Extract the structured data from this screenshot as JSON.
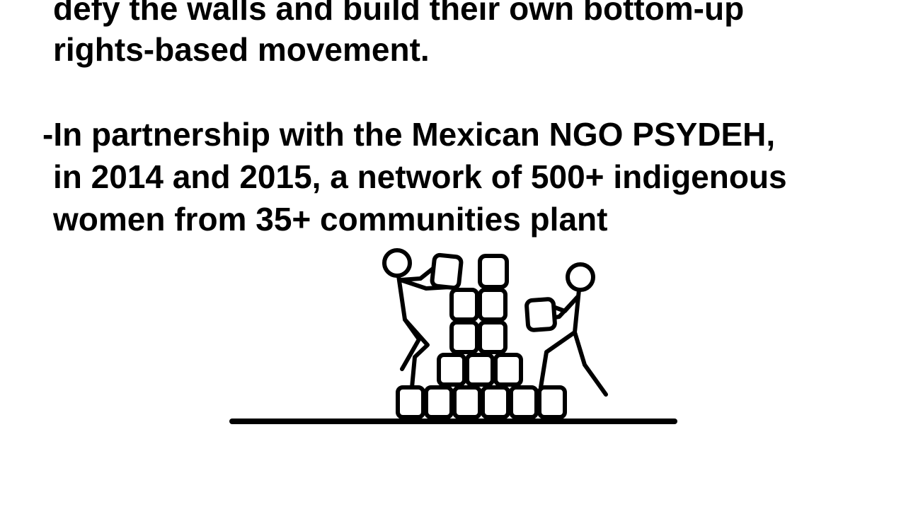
{
  "slide": {
    "lines": [
      "defy the walls and build their own bottom-up",
      "rights-based movement.",
      "-In partnership with the Mexican NGO PSYDEH,",
      "in 2014 and 2015, a network of 500+ indigenous",
      "women from 35+ communities plant"
    ]
  },
  "illustration": {
    "icon": "stick-figures-building-wall-icon",
    "color": "#000000"
  }
}
